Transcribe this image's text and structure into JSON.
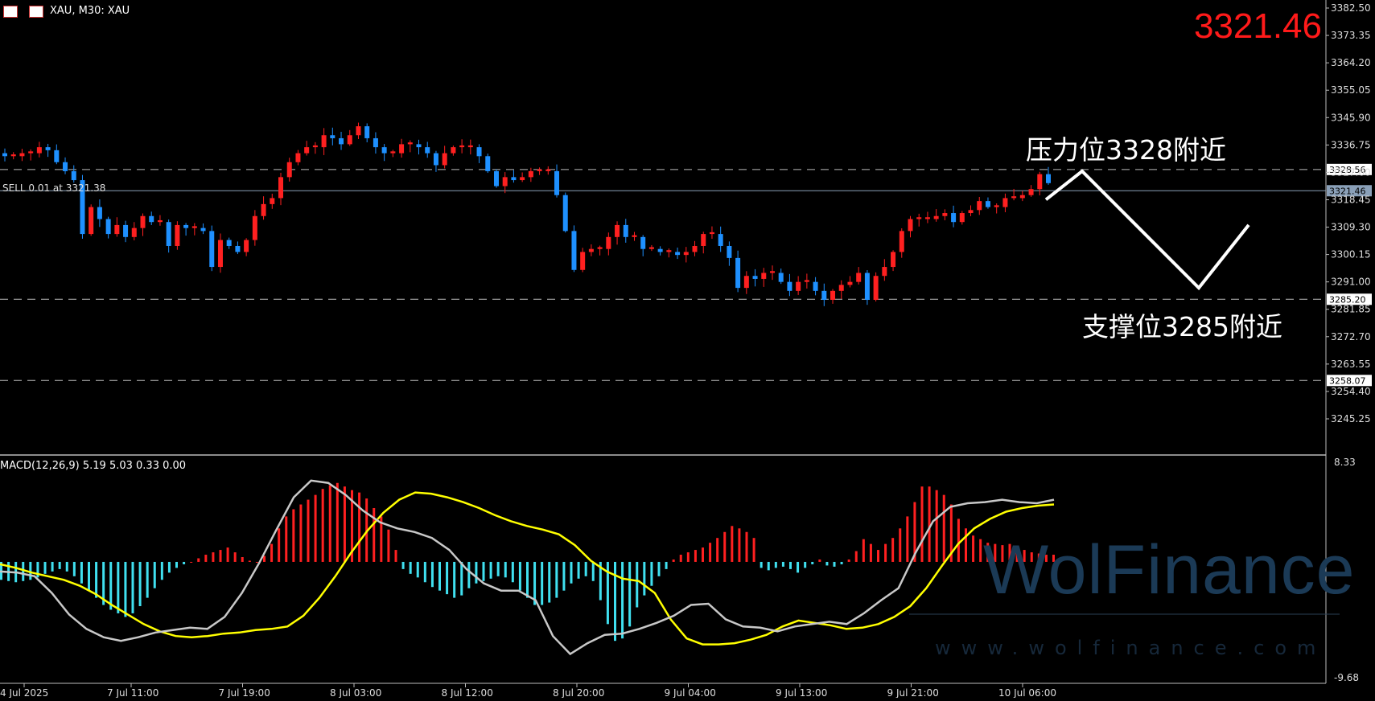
{
  "header": {
    "symbol_text": "XAU, M30:  XAU",
    "current_price": "3321.46"
  },
  "annotations": {
    "resistance": "压力位3328附近",
    "support": "支撑位3285附近",
    "order_line": "SELL 0.01 at 3321.38"
  },
  "watermark": {
    "name": "WolFinance",
    "url": "www.wolfinance.com"
  },
  "colors": {
    "bull_candle": "#ff2020",
    "bear_candle": "#1e90ff",
    "macd_positive": "#ff2020",
    "macd_negative": "#40e0f0",
    "signal_line": "#ffff00",
    "macd_line": "#c8c8c8",
    "price_text": "#ff1a1a"
  },
  "chart_data": [
    {
      "type": "candlestick",
      "symbol": "XAU",
      "timeframe": "M30",
      "ylim": [
        3240,
        3384
      ],
      "y_ticks": [
        "3382.50",
        "3373.35",
        "3364.20",
        "3355.05",
        "3345.90",
        "3336.75",
        "3327.60",
        "3318.45",
        "3309.30",
        "3300.15",
        "3291.00",
        "3281.85",
        "3272.70",
        "3263.55",
        "3254.40",
        "3245.25"
      ],
      "x_tick_labels": [
        "4 Jul 2025",
        "7 Jul 11:00",
        "7 Jul 19:00",
        "8 Jul 03:00",
        "8 Jul 12:00",
        "8 Jul 20:00",
        "9 Jul 04:00",
        "9 Jul 13:00",
        "9 Jul 21:00",
        "10 Jul 06:00"
      ],
      "horizontal_levels": [
        {
          "price": 3328.56,
          "label": "3328.56",
          "style": "dashed"
        },
        {
          "price": 3321.46,
          "label": "3321.46",
          "style": "solid",
          "highlight": true
        },
        {
          "price": 3285.2,
          "label": "3285.20",
          "style": "dashed"
        },
        {
          "price": 3258.07,
          "label": "3258.07",
          "style": "dashed"
        }
      ],
      "closes_path": [
        3333,
        3333,
        3334,
        3334,
        3336,
        3335,
        3331,
        3328,
        3325,
        3307,
        3316,
        3312,
        3307,
        3310,
        3306,
        3309,
        3313,
        3311,
        3311,
        3303,
        3310,
        3309,
        3309,
        3308,
        3296,
        3305,
        3303,
        3301,
        3305,
        3313,
        3317,
        3319,
        3326,
        3331,
        3334,
        3336,
        3336,
        3340,
        3339,
        3337,
        3340,
        3343,
        3339,
        3336,
        3334,
        3334,
        3337,
        3337,
        3336,
        3334,
        3330,
        3334,
        3336,
        3336,
        3336,
        3333,
        3328,
        3323,
        3326,
        3325,
        3326,
        3328,
        3328,
        3328,
        3320,
        3308,
        3295,
        3301,
        3302,
        3302,
        3306,
        3310,
        3306,
        3306,
        3302,
        3302,
        3301,
        3301,
        3300,
        3301,
        3303,
        3307,
        3307,
        3303,
        3299,
        3289,
        3293,
        3292,
        3294,
        3294,
        3291,
        3288,
        3291,
        3291,
        3288,
        3285,
        3288,
        3290,
        3291,
        3294,
        3285,
        3293,
        3296,
        3301,
        3308,
        3312,
        3312,
        3312,
        3313,
        3314,
        3311,
        3314,
        3315,
        3318,
        3316,
        3316,
        3319,
        3319,
        3320,
        3322,
        3327,
        3324
      ],
      "projection": {
        "points": [
          [
            3318.5,
            "10 Jul 07:00"
          ],
          [
            3328.0,
            "10 Jul 10:00"
          ],
          [
            3289.0,
            "10 Jul 22:00"
          ],
          [
            3310.0,
            "11 Jul 03:00"
          ]
        ]
      }
    },
    {
      "type": "bar",
      "title": "MACD(12,26,9) 5.19 5.03 0.33 0.00",
      "ylim": [
        -9.68,
        8.33
      ],
      "y_ticks": [
        "8.33",
        "-9.68"
      ],
      "histogram": [
        -1.5,
        -1.6,
        -1.7,
        -1.6,
        -1.5,
        -1.3,
        -1.0,
        -0.8,
        -0.6,
        -0.8,
        -1.2,
        -1.8,
        -2.4,
        -3.0,
        -3.6,
        -4.0,
        -4.3,
        -4.6,
        -4.3,
        -3.7,
        -3.0,
        -2.2,
        -1.5,
        -0.9,
        -0.5,
        -0.2,
        0,
        0.3,
        0.6,
        0.8,
        1.0,
        1.2,
        0.8,
        0.4,
        0.1,
        0,
        0.5,
        1.5,
        2.8,
        3.8,
        4.4,
        4.8,
        5.2,
        5.6,
        6.1,
        6.4,
        6.6,
        6.3,
        6.0,
        5.8,
        5.3,
        4.5,
        3.8,
        2.7,
        1.0,
        -0.6,
        -1.0,
        -1.3,
        -1.7,
        -2.1,
        -2.4,
        -2.7,
        -3.0,
        -2.8,
        -2.2,
        -1.8,
        -1.6,
        -1.4,
        -1.2,
        -1.3,
        -1.7,
        -2.4,
        -3.0,
        -3.6,
        -3.6,
        -3.4,
        -3.0,
        -2.4,
        -1.8,
        -1.4,
        -1.2,
        -1.6,
        -3.2,
        -5.2,
        -6.6,
        -6.4,
        -5.4,
        -3.8,
        -2.8,
        -2.0,
        -1.2,
        -0.6,
        0.2,
        0.6,
        0.8,
        1.0,
        1.2,
        1.6,
        2.0,
        2.5,
        3.0,
        2.8,
        2.5,
        2.0,
        -0.5,
        -0.7,
        -0.5,
        -0.4,
        -0.6,
        -0.9,
        -0.5,
        -0.2,
        0.2,
        -0.3,
        -0.4,
        -0.2,
        0.2,
        0.9,
        1.9,
        1.5,
        1.0,
        1.5,
        2.0,
        2.8,
        3.8,
        5.0,
        6.3,
        6.3,
        6.0,
        5.6,
        4.8,
        3.6,
        2.8,
        2.2,
        1.9,
        1.6,
        1.5,
        1.4,
        1.5,
        1.2,
        1.0,
        0.8,
        0.7,
        0.6,
        0.6
      ],
      "signal_line": [
        -0.2,
        -0.5,
        -0.9,
        -1.2,
        -1.5,
        -2.0,
        -2.7,
        -3.6,
        -4.4,
        -5.2,
        -5.8,
        -6.2,
        -6.3,
        -6.2,
        -6.0,
        -5.9,
        -5.7,
        -5.6,
        -5.4,
        -4.5,
        -3.0,
        -1.2,
        0.8,
        2.6,
        4.1,
        5.2,
        5.8,
        5.7,
        5.4,
        5.0,
        4.5,
        3.9,
        3.4,
        3.0,
        2.7,
        2.3,
        1.4,
        0.1,
        -0.8,
        -1.4,
        -1.6,
        -2.6,
        -4.8,
        -6.4,
        -6.9,
        -6.9,
        -6.8,
        -6.5,
        -6.1,
        -5.4,
        -4.9,
        -5.1,
        -5.3,
        -5.6,
        -5.5,
        -5.2,
        -4.6,
        -3.7,
        -2.2,
        -0.3,
        1.5,
        2.8,
        3.6,
        4.2,
        4.5,
        4.7,
        4.8
      ],
      "macd_line": [
        -0.8,
        -0.9,
        -1.2,
        -2.6,
        -4.4,
        -5.6,
        -6.3,
        -6.6,
        -6.3,
        -5.9,
        -5.7,
        -5.5,
        -5.6,
        -4.6,
        -2.6,
        -0.1,
        2.7,
        5.4,
        6.8,
        6.6,
        5.6,
        4.3,
        3.3,
        2.8,
        2.5,
        2.0,
        1.0,
        -0.6,
        -1.8,
        -2.4,
        -2.4,
        -3.2,
        -6.2,
        -7.7,
        -6.8,
        -6.1,
        -6.0,
        -5.6,
        -5.1,
        -4.5,
        -3.6,
        -3.5,
        -4.8,
        -5.4,
        -5.5,
        -5.8,
        -5.4,
        -5.2,
        -5.0,
        -5.2,
        -4.3,
        -3.2,
        -2.2,
        0.8,
        3.4,
        4.6,
        4.9,
        5.0,
        5.2,
        5.0,
        4.9,
        5.2
      ]
    }
  ]
}
